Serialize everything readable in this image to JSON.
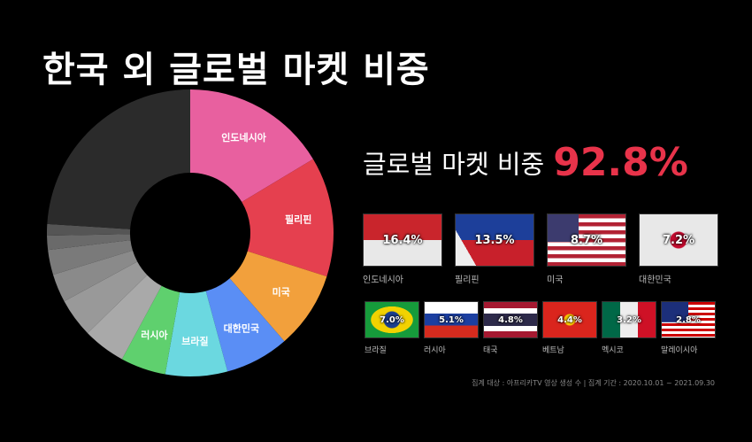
{
  "chart_data": {
    "type": "pie",
    "title": "한국 외 글로벌 마켓 비중",
    "subtitle": "글로벌 마켓 비중",
    "total_label": "92.8%",
    "categories": [
      "인도네시아",
      "필리핀",
      "미국",
      "대한민국",
      "브라질",
      "러시아",
      "태국",
      "베트남",
      "멕시코",
      "말레이시아",
      null,
      null,
      null
    ],
    "values": [
      16.4,
      13.5,
      8.7,
      7.2,
      7.0,
      5.1,
      4.8,
      4.4,
      3.2,
      2.8,
      1.6,
      1.3,
      24.0
    ],
    "value_labels": [
      "16.4%",
      "13.5%",
      "8.7%",
      "7.2%",
      "7.0%",
      "5.1%",
      "4.8%",
      "4.4%",
      "3.2%",
      "2.8%",
      null,
      null,
      null
    ],
    "colors": [
      "#e8609f",
      "#e5404f",
      "#f2a03c",
      "#5a8ef5",
      "#6bd8e0",
      "#5fd06e",
      "#a9a9a9",
      "#999999",
      "#8a8a8a",
      "#7a7a7a",
      "#6a6a6a",
      "#555555",
      "#2b2b2b"
    ],
    "footnote": "집계 대상 : 아프리카TV 영상 생성 수  |  집계 기간 : 2020.10.01 ~ 2021.09.30"
  }
}
